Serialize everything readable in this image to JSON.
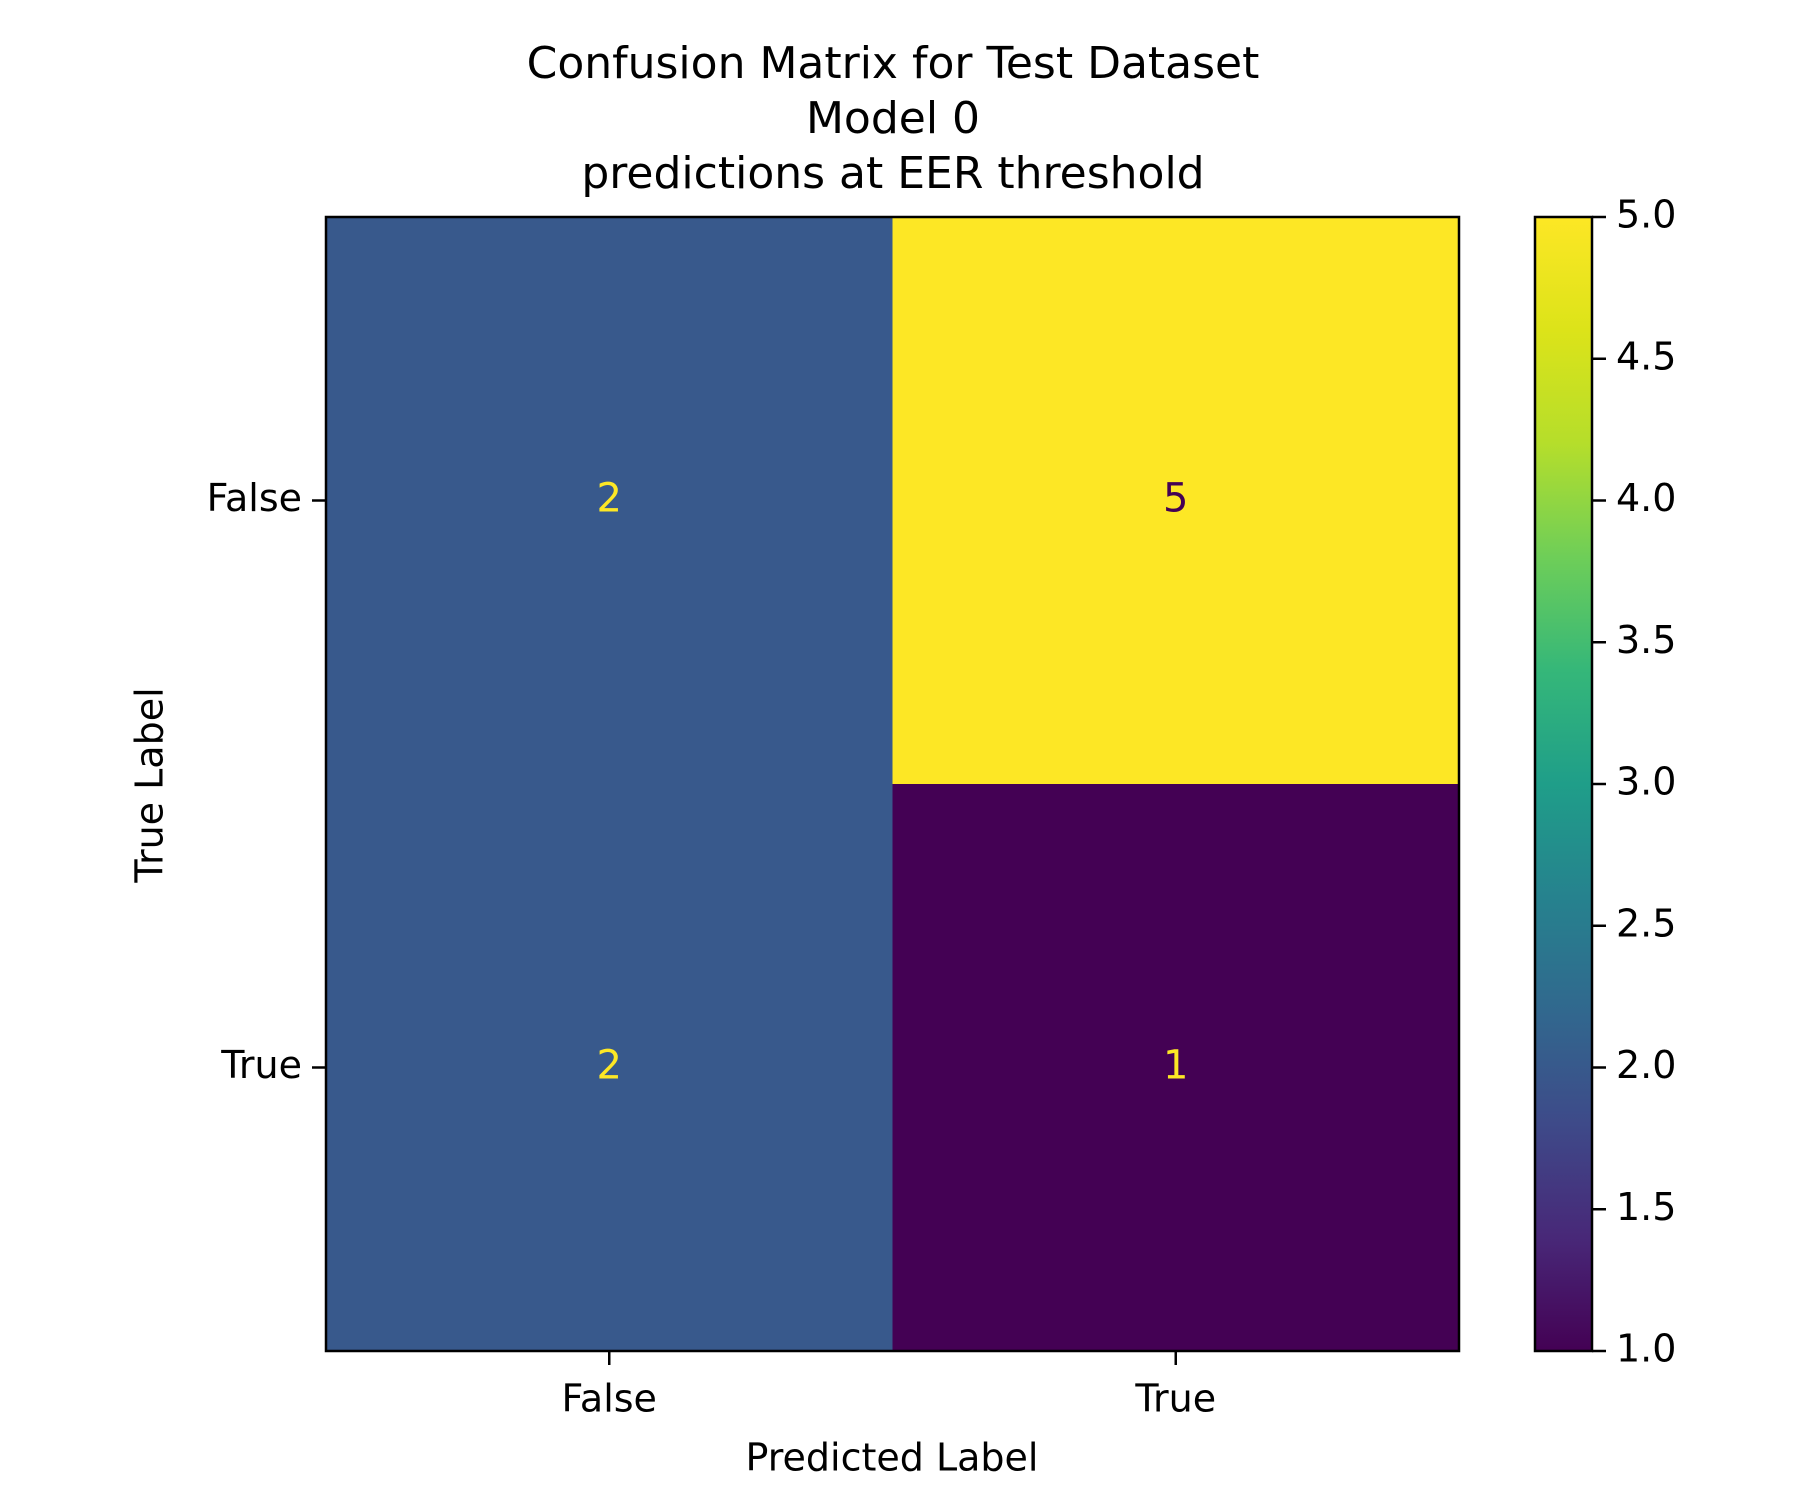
{
  "chart_data": {
    "type": "heatmap",
    "title": [
      "Confusion Matrix for Test Dataset",
      "Model 0",
      "predictions at EER threshold"
    ],
    "xlabel": "Predicted Label",
    "ylabel": "True Label",
    "x_categories": [
      "False",
      "True"
    ],
    "y_categories": [
      "False",
      "True"
    ],
    "values": [
      [
        2,
        5
      ],
      [
        2,
        1
      ]
    ],
    "colormap": "viridis",
    "colorbar": {
      "min": 1.0,
      "max": 5.0,
      "ticks": [
        "1.0",
        "1.5",
        "2.0",
        "2.5",
        "3.0",
        "3.5",
        "4.0",
        "4.5",
        "5.0"
      ]
    },
    "grid": false,
    "annotation_colors": {
      "on_dark": "#fde725",
      "on_light": "#440154"
    }
  }
}
